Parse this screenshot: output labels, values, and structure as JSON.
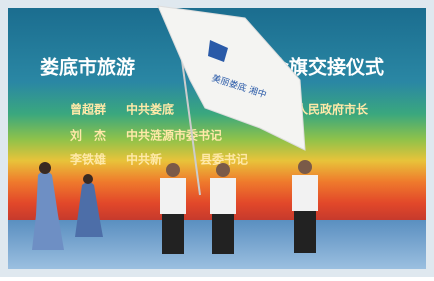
{
  "screen": {
    "title_left": "娄底市旅游",
    "title_right": "会旗交接仪式",
    "rows": [
      {
        "name": "曾超群",
        "title_left": "中共娄底",
        "title_right": "人民政府市长"
      },
      {
        "name": "刘　杰",
        "title_left": "中共涟源市委书记",
        "title_right": ""
      },
      {
        "name": "李铁雄",
        "title_left": "中共新",
        "title_right": "县委书记"
      }
    ]
  },
  "flag": {
    "text": "美丽娄底 湘中"
  }
}
